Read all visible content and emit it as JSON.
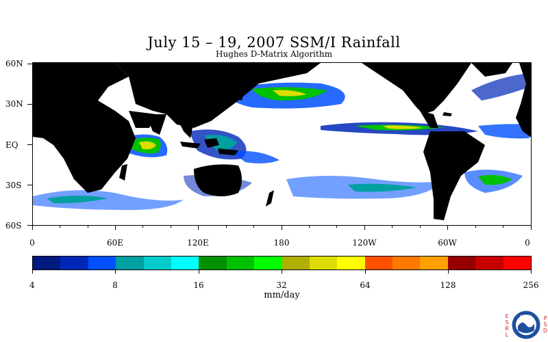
{
  "title": "July 15 – 19, 2007 SSM/I Rainfall",
  "subtitle": "Hughes D-Matrix Algorithm",
  "map": {
    "land_color": "#000000",
    "ocean_color": "#ffffff",
    "lat_labels": [
      "60N",
      "30N",
      "EQ",
      "30S",
      "60S"
    ],
    "lon_labels": [
      "0",
      "60E",
      "120E",
      "180",
      "120W",
      "60W",
      "0"
    ]
  },
  "legend": {
    "colors": [
      "#001a80",
      "#0028b8",
      "#0050ff",
      "#00a0a0",
      "#00cccc",
      "#00ffff",
      "#009000",
      "#00c000",
      "#00ff00",
      "#b0b000",
      "#dcdc00",
      "#ffff00",
      "#ff5000",
      "#ff7800",
      "#ffa000",
      "#960000",
      "#c80000",
      "#ff0000"
    ],
    "labels": [
      "4",
      "8",
      "16",
      "32",
      "64",
      "128",
      "256"
    ],
    "unit": "mm/day"
  },
  "logo": {
    "left_letters": [
      "E",
      "S",
      "R",
      "L"
    ],
    "right_letters": [
      "P",
      "S",
      "D"
    ],
    "badge_text": "NOAA"
  }
}
